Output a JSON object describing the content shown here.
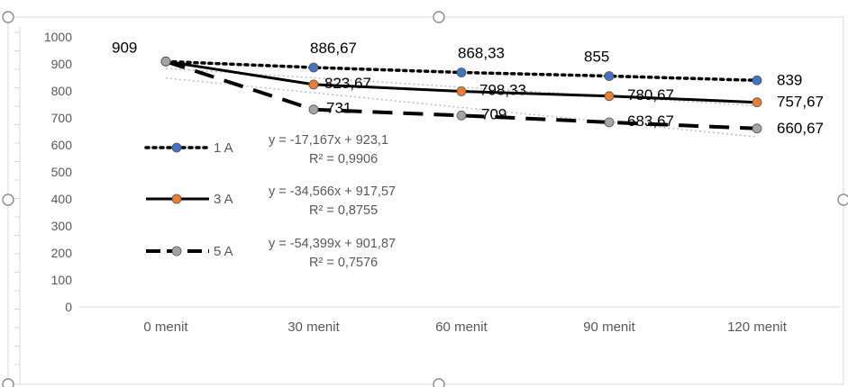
{
  "chart_data": {
    "type": "line",
    "categories": [
      "0 menit",
      "30 menit",
      "60 menit",
      "90 menit",
      "120 menit"
    ],
    "ylim": [
      0,
      1000
    ],
    "yticks": [
      0,
      100,
      200,
      300,
      400,
      500,
      600,
      700,
      800,
      900,
      1000
    ],
    "grid": false,
    "legend_position": "left",
    "series": [
      {
        "name": "1 A",
        "values": [
          909,
          886.67,
          868.33,
          855,
          839
        ],
        "labels": [
          "909",
          "886,67",
          "868,33",
          "855",
          "839"
        ],
        "line_style": "dotted",
        "marker_color": "#4472c4",
        "trendline": {
          "slope": -17.167,
          "intercept": 923.1,
          "equation": "y = -17,167x + 923,1",
          "r2": "R² = 0,9906"
        }
      },
      {
        "name": "3 A",
        "values": [
          909,
          823.67,
          798.33,
          780.67,
          757.67
        ],
        "labels": [
          "",
          "823,67",
          "798,33",
          "780,67",
          "757,67"
        ],
        "line_style": "solid",
        "marker_color": "#ed7d31",
        "trendline": {
          "slope": -34.566,
          "intercept": 917.57,
          "equation": "y = -34,566x + 917,57",
          "r2": "R² = 0,8755"
        }
      },
      {
        "name": "5 A",
        "values": [
          909,
          731,
          709,
          683.67,
          660.67
        ],
        "labels": [
          "",
          "731",
          "709",
          "683,67",
          "660,67"
        ],
        "line_style": "dashed",
        "marker_color": "#a5a5a5",
        "trendline": {
          "slope": -54.399,
          "intercept": 901.87,
          "equation": "y = -54,399x + 901,87",
          "r2": "R² = 0,7576"
        }
      }
    ]
  }
}
